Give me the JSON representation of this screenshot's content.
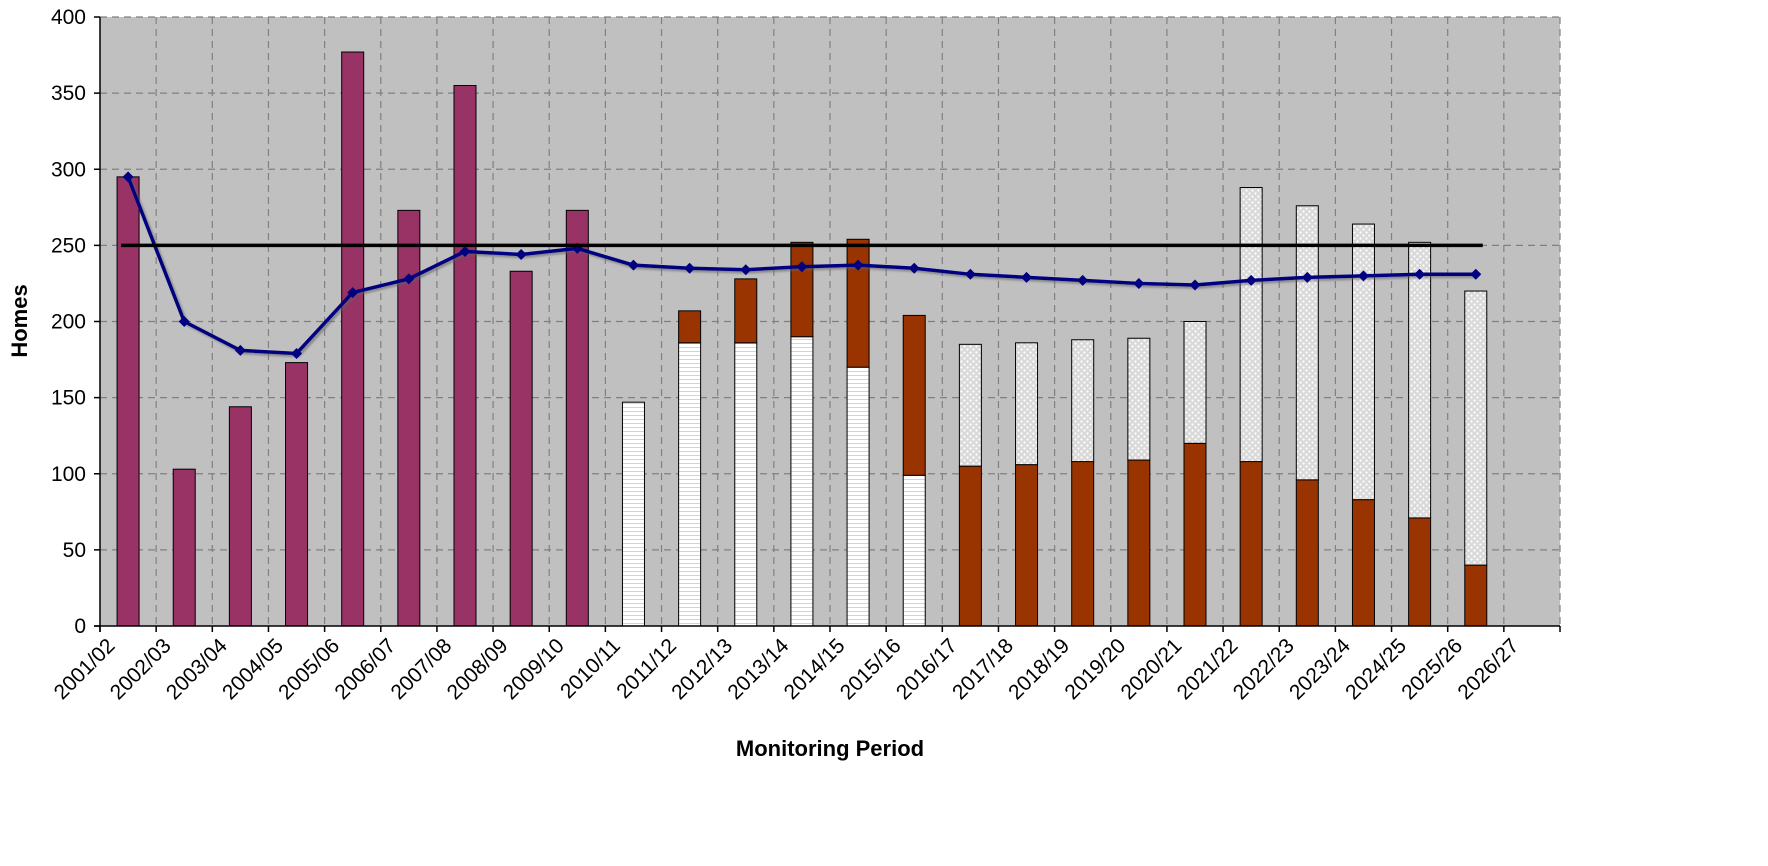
{
  "chart_data": {
    "type": "bar",
    "title": "",
    "xlabel": "Monitoring Period",
    "ylabel": "Homes",
    "ylim": [
      0,
      400
    ],
    "yticks": [
      0,
      50,
      100,
      150,
      200,
      250,
      300,
      350,
      400
    ],
    "grid": true,
    "stacked": true,
    "categories": [
      "2001/02",
      "2002/03",
      "2003/04",
      "2004/05",
      "2005/06",
      "2006/07",
      "2007/08",
      "2008/09",
      "2009/10",
      "2010/11",
      "2011/12",
      "2012/13",
      "2013/14",
      "2014/15",
      "2015/16",
      "2016/17",
      "2017/18",
      "2018/19",
      "2019/20",
      "2020/21",
      "2021/22",
      "2022/23",
      "2023/24",
      "2024/25",
      "2025/26",
      "2026/27"
    ],
    "series": [
      {
        "pattern": "solid",
        "color": "#993366",
        "values": [
          295,
          103,
          144,
          173,
          377,
          273,
          355,
          233,
          273,
          null,
          null,
          null,
          null,
          null,
          null,
          null,
          null,
          null,
          null,
          null,
          null,
          null,
          null,
          null,
          null,
          null
        ]
      },
      {
        "pattern": "horizontal-lines",
        "color": "#ffffff",
        "values": [
          null,
          null,
          null,
          null,
          null,
          null,
          null,
          null,
          null,
          147,
          186,
          186,
          190,
          170,
          99,
          null,
          null,
          null,
          null,
          null,
          null,
          null,
          null,
          null,
          null,
          null
        ]
      },
      {
        "pattern": "solid",
        "color": "#993300",
        "values": [
          null,
          null,
          null,
          null,
          null,
          null,
          null,
          null,
          null,
          null,
          21,
          42,
          62,
          84,
          105,
          105,
          106,
          108,
          109,
          120,
          108,
          96,
          83,
          71,
          40,
          null
        ]
      },
      {
        "pattern": "dotted",
        "color": "#d9d9d9",
        "values": [
          null,
          null,
          null,
          null,
          null,
          null,
          null,
          null,
          null,
          null,
          null,
          null,
          null,
          null,
          null,
          80,
          80,
          80,
          80,
          80,
          180,
          180,
          181,
          181,
          180,
          null
        ]
      }
    ],
    "lines": [
      {
        "style": "line-with-diamond-markers",
        "color": "#000080",
        "values": [
          295,
          200,
          181,
          179,
          219,
          228,
          246,
          244,
          248,
          237,
          235,
          234,
          236,
          237,
          235,
          231,
          229,
          227,
          225,
          224,
          227,
          229,
          230,
          231,
          231,
          null
        ]
      },
      {
        "style": "flat-line",
        "color": "#000000",
        "value": 250
      }
    ],
    "colors": {
      "plot_background": "#c0c0c0",
      "gridline": "#808080"
    }
  }
}
